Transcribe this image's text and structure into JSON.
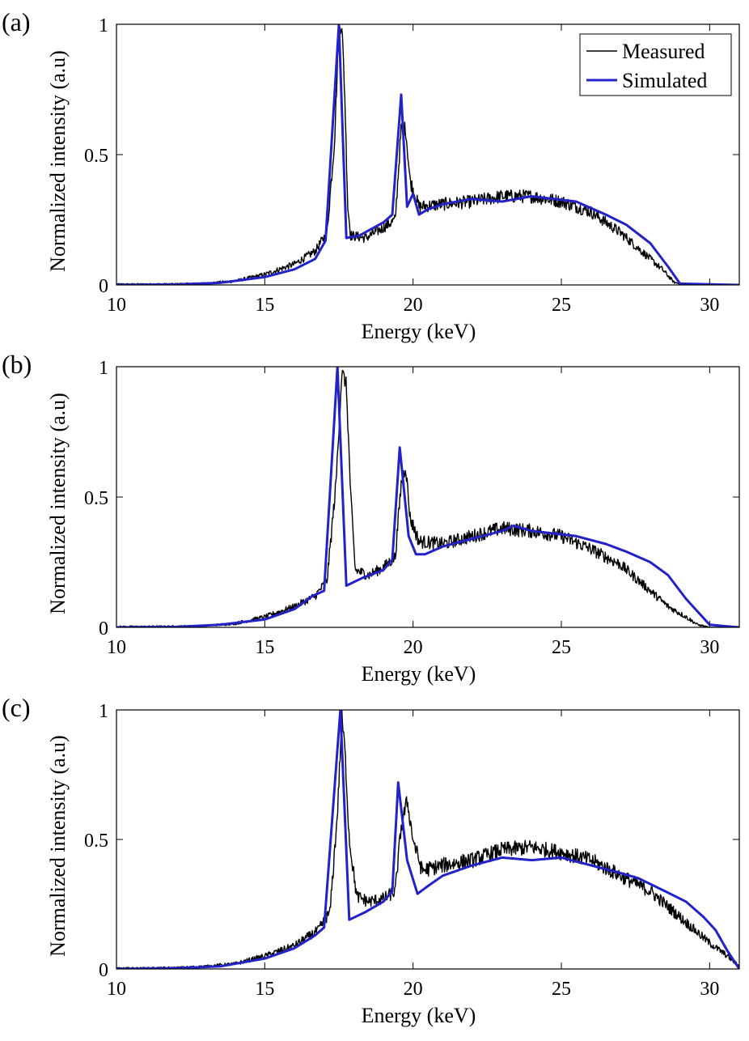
{
  "chart_data": [
    {
      "type": "line",
      "panel_label": "(a)",
      "xlabel": "Energy (keV)",
      "ylabel": "Normalized intensity (a.u)",
      "xlim": [
        10,
        31
      ],
      "ylim": [
        0,
        1
      ],
      "xticks": [
        10,
        15,
        20,
        25,
        30
      ],
      "xtick_labels": [
        "10",
        "15",
        "20",
        "25",
        "30"
      ],
      "yticks": [
        0,
        0.5,
        1
      ],
      "ytick_labels": [
        "0",
        "0.5",
        "1"
      ],
      "legend": {
        "position": "top-right",
        "entries": [
          "Measured",
          "Simulated"
        ]
      },
      "series": [
        {
          "name": "Measured",
          "color": "#000000",
          "noise": 0.028,
          "points": [
            [
              10,
              0.003
            ],
            [
              12,
              0.004
            ],
            [
              13,
              0.006
            ],
            [
              14,
              0.015
            ],
            [
              15,
              0.04
            ],
            [
              16,
              0.08
            ],
            [
              16.7,
              0.13
            ],
            [
              17.1,
              0.2
            ],
            [
              17.35,
              0.55
            ],
            [
              17.5,
              0.98
            ],
            [
              17.6,
              1.0
            ],
            [
              17.7,
              0.72
            ],
            [
              17.8,
              0.3
            ],
            [
              17.9,
              0.19
            ],
            [
              18.4,
              0.18
            ],
            [
              19,
              0.22
            ],
            [
              19.4,
              0.25
            ],
            [
              19.6,
              0.6
            ],
            [
              19.75,
              0.6
            ],
            [
              19.9,
              0.4
            ],
            [
              20.2,
              0.3
            ],
            [
              21,
              0.31
            ],
            [
              22,
              0.32
            ],
            [
              23,
              0.34
            ],
            [
              24,
              0.34
            ],
            [
              25,
              0.32
            ],
            [
              26,
              0.28
            ],
            [
              27,
              0.2
            ],
            [
              27.8,
              0.12
            ],
            [
              28.4,
              0.06
            ],
            [
              28.8,
              0.01
            ],
            [
              29.2,
              0.0
            ],
            [
              31,
              0.0
            ]
          ]
        },
        {
          "name": "Simulated",
          "color": "#2222c8",
          "noise": 0,
          "points": [
            [
              10,
              0.0
            ],
            [
              12,
              0.002
            ],
            [
              13.5,
              0.008
            ],
            [
              15,
              0.03
            ],
            [
              16,
              0.06
            ],
            [
              16.7,
              0.1
            ],
            [
              17.05,
              0.17
            ],
            [
              17.5,
              1.0
            ],
            [
              17.75,
              0.18
            ],
            [
              18.2,
              0.19
            ],
            [
              19,
              0.24
            ],
            [
              19.3,
              0.27
            ],
            [
              19.6,
              0.73
            ],
            [
              19.8,
              0.3
            ],
            [
              20,
              0.35
            ],
            [
              20.2,
              0.27
            ],
            [
              20.5,
              0.29
            ],
            [
              21,
              0.31
            ],
            [
              22,
              0.33
            ],
            [
              23,
              0.32
            ],
            [
              24,
              0.34
            ],
            [
              25.5,
              0.32
            ],
            [
              26.5,
              0.27
            ],
            [
              27.2,
              0.23
            ],
            [
              28,
              0.16
            ],
            [
              28.6,
              0.07
            ],
            [
              29,
              0.005
            ],
            [
              31,
              0.0
            ]
          ]
        }
      ]
    },
    {
      "type": "line",
      "panel_label": "(b)",
      "xlabel": "Energy (keV)",
      "ylabel": "Normalized intensity (a.u)",
      "xlim": [
        10,
        31
      ],
      "ylim": [
        0,
        1
      ],
      "xticks": [
        10,
        15,
        20,
        25,
        30
      ],
      "xtick_labels": [
        "10",
        "15",
        "20",
        "25",
        "30"
      ],
      "yticks": [
        0,
        0.5,
        1
      ],
      "ytick_labels": [
        "0",
        "0.5",
        "1"
      ],
      "series": [
        {
          "name": "Measured",
          "color": "#000000",
          "noise": 0.028,
          "points": [
            [
              10,
              0.003
            ],
            [
              12,
              0.004
            ],
            [
              13,
              0.006
            ],
            [
              14,
              0.015
            ],
            [
              15,
              0.04
            ],
            [
              16,
              0.08
            ],
            [
              16.7,
              0.12
            ],
            [
              17.1,
              0.18
            ],
            [
              17.4,
              0.55
            ],
            [
              17.6,
              0.98
            ],
            [
              17.75,
              0.93
            ],
            [
              17.9,
              0.5
            ],
            [
              18.05,
              0.22
            ],
            [
              18.5,
              0.2
            ],
            [
              19,
              0.23
            ],
            [
              19.4,
              0.27
            ],
            [
              19.6,
              0.55
            ],
            [
              19.75,
              0.62
            ],
            [
              19.9,
              0.42
            ],
            [
              20.2,
              0.33
            ],
            [
              21,
              0.32
            ],
            [
              22,
              0.35
            ],
            [
              23,
              0.38
            ],
            [
              24,
              0.37
            ],
            [
              25,
              0.35
            ],
            [
              26,
              0.3
            ],
            [
              27,
              0.24
            ],
            [
              28,
              0.14
            ],
            [
              28.6,
              0.08
            ],
            [
              29.2,
              0.04
            ],
            [
              29.6,
              0.01
            ],
            [
              30,
              0.0
            ],
            [
              31,
              0.0
            ]
          ]
        },
        {
          "name": "Simulated",
          "color": "#2222c8",
          "noise": 0,
          "points": [
            [
              10,
              0.0
            ],
            [
              12,
              0.002
            ],
            [
              13.5,
              0.01
            ],
            [
              15,
              0.03
            ],
            [
              16,
              0.07
            ],
            [
              16.6,
              0.12
            ],
            [
              17,
              0.14
            ],
            [
              17.45,
              1.0
            ],
            [
              17.75,
              0.16
            ],
            [
              18.3,
              0.19
            ],
            [
              19,
              0.22
            ],
            [
              19.3,
              0.26
            ],
            [
              19.55,
              0.69
            ],
            [
              19.85,
              0.35
            ],
            [
              20.1,
              0.28
            ],
            [
              20.4,
              0.28
            ],
            [
              21,
              0.31
            ],
            [
              22,
              0.34
            ],
            [
              23,
              0.37
            ],
            [
              23.4,
              0.39
            ],
            [
              24,
              0.37
            ],
            [
              25.5,
              0.35
            ],
            [
              26.5,
              0.32
            ],
            [
              27.2,
              0.29
            ],
            [
              28,
              0.25
            ],
            [
              28.6,
              0.2
            ],
            [
              29.2,
              0.11
            ],
            [
              29.6,
              0.06
            ],
            [
              30,
              0.01
            ],
            [
              31,
              0.0
            ]
          ]
        }
      ]
    },
    {
      "type": "line",
      "panel_label": "(c)",
      "xlabel": "Energy (keV)",
      "ylabel": "Normalized intensity (a.u)",
      "xlim": [
        10,
        31
      ],
      "ylim": [
        0,
        1
      ],
      "xticks": [
        10,
        15,
        20,
        25,
        30
      ],
      "xtick_labels": [
        "10",
        "15",
        "20",
        "25",
        "30"
      ],
      "yticks": [
        0,
        0.5,
        1
      ],
      "ytick_labels": [
        "0",
        "0.5",
        "1"
      ],
      "series": [
        {
          "name": "Measured",
          "color": "#000000",
          "noise": 0.03,
          "points": [
            [
              10,
              0.003
            ],
            [
              12,
              0.005
            ],
            [
              13,
              0.01
            ],
            [
              14,
              0.02
            ],
            [
              15,
              0.05
            ],
            [
              16,
              0.09
            ],
            [
              16.8,
              0.15
            ],
            [
              17.2,
              0.22
            ],
            [
              17.45,
              0.6
            ],
            [
              17.6,
              0.97
            ],
            [
              17.7,
              0.85
            ],
            [
              17.85,
              0.5
            ],
            [
              18.1,
              0.28
            ],
            [
              18.5,
              0.26
            ],
            [
              19,
              0.27
            ],
            [
              19.4,
              0.3
            ],
            [
              19.6,
              0.55
            ],
            [
              19.8,
              0.65
            ],
            [
              20,
              0.5
            ],
            [
              20.3,
              0.38
            ],
            [
              21,
              0.4
            ],
            [
              22,
              0.42
            ],
            [
              23,
              0.46
            ],
            [
              24,
              0.47
            ],
            [
              25,
              0.45
            ],
            [
              26,
              0.42
            ],
            [
              27,
              0.36
            ],
            [
              28,
              0.3
            ],
            [
              29,
              0.2
            ],
            [
              30,
              0.1
            ],
            [
              30.6,
              0.05
            ],
            [
              31,
              0.01
            ]
          ]
        },
        {
          "name": "Simulated",
          "color": "#2222c8",
          "noise": 0,
          "points": [
            [
              10,
              0.0
            ],
            [
              12,
              0.003
            ],
            [
              13.5,
              0.01
            ],
            [
              15,
              0.04
            ],
            [
              16,
              0.08
            ],
            [
              16.7,
              0.13
            ],
            [
              17,
              0.16
            ],
            [
              17.55,
              1.0
            ],
            [
              17.85,
              0.19
            ],
            [
              18.4,
              0.22
            ],
            [
              19,
              0.26
            ],
            [
              19.3,
              0.3
            ],
            [
              19.5,
              0.72
            ],
            [
              19.8,
              0.42
            ],
            [
              20.15,
              0.29
            ],
            [
              20.5,
              0.32
            ],
            [
              21,
              0.36
            ],
            [
              22,
              0.4
            ],
            [
              23,
              0.43
            ],
            [
              24,
              0.42
            ],
            [
              25,
              0.43
            ],
            [
              26,
              0.4
            ],
            [
              27,
              0.37
            ],
            [
              27.6,
              0.35
            ],
            [
              28.5,
              0.3
            ],
            [
              29.2,
              0.26
            ],
            [
              29.8,
              0.2
            ],
            [
              30.2,
              0.15
            ],
            [
              30.6,
              0.07
            ],
            [
              31,
              0.0
            ]
          ]
        }
      ]
    }
  ]
}
